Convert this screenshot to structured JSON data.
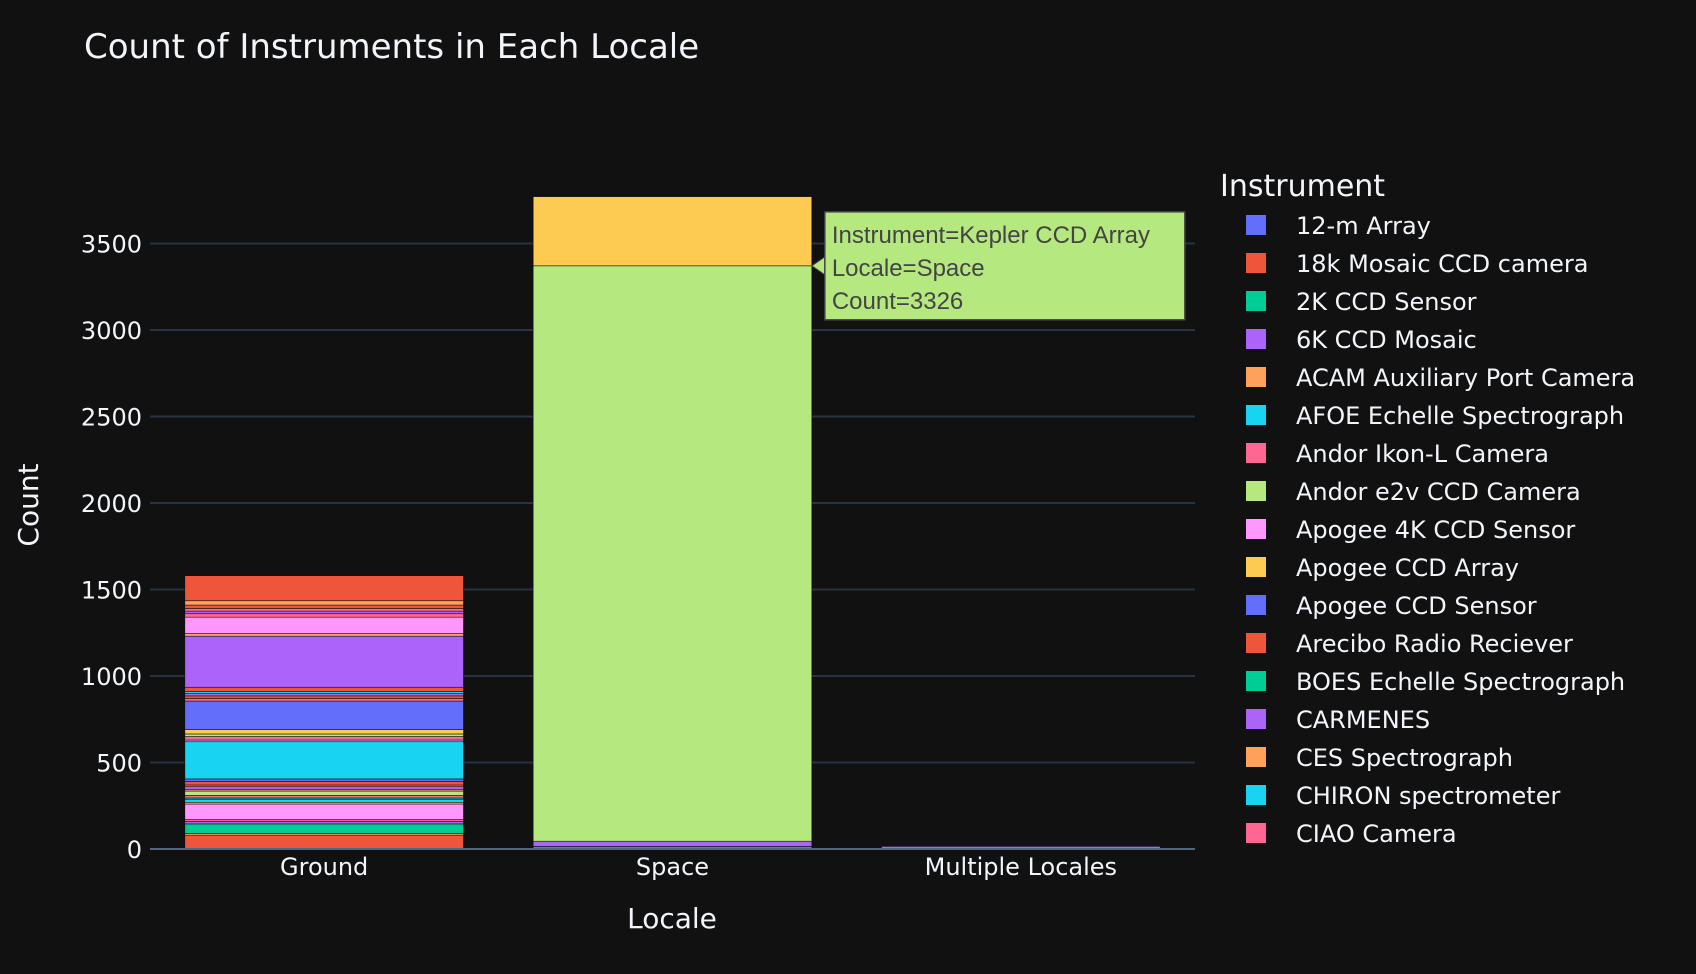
{
  "chart_data": {
    "type": "bar",
    "barmode": "stack",
    "title": "Count of Instruments in Each Locale",
    "xlabel": "Locale",
    "ylabel": "Count",
    "categories": [
      "Ground",
      "Space",
      "Multiple Locales"
    ],
    "y_ticks": [
      0,
      500,
      1000,
      1500,
      2000,
      2500,
      3000,
      3500
    ],
    "ylim": [
      0,
      3800
    ],
    "grid": true,
    "legend": {
      "title": "Instrument",
      "placement": "right",
      "items": [
        {
          "name": "12-m Array",
          "color": "#636efa"
        },
        {
          "name": "18k Mosaic CCD camera",
          "color": "#EF553B"
        },
        {
          "name": "2K CCD Sensor",
          "color": "#00cc96"
        },
        {
          "name": "6K CCD Mosaic",
          "color": "#ab63fa"
        },
        {
          "name": "ACAM Auxiliary Port Camera",
          "color": "#FFA15A"
        },
        {
          "name": "AFOE Echelle Spectrograph",
          "color": "#19d3f3"
        },
        {
          "name": "Andor Ikon-L Camera",
          "color": "#FF6692"
        },
        {
          "name": "Andor e2v CCD Camera",
          "color": "#B6E880"
        },
        {
          "name": "Apogee 4K CCD Sensor",
          "color": "#FF97FF"
        },
        {
          "name": "Apogee CCD Array",
          "color": "#FECB52"
        },
        {
          "name": "Apogee CCD Sensor",
          "color": "#636efa"
        },
        {
          "name": "Arecibo Radio Reciever",
          "color": "#EF553B"
        },
        {
          "name": "BOES Echelle Spectrograph",
          "color": "#00cc96"
        },
        {
          "name": "CARMENES",
          "color": "#ab63fa"
        },
        {
          "name": "CES Spectrograph",
          "color": "#FFA15A"
        },
        {
          "name": "CHIRON spectrometer",
          "color": "#19d3f3"
        },
        {
          "name": "CIAO Camera",
          "color": "#FF6692"
        }
      ]
    },
    "stacks": [
      {
        "category": "Ground",
        "segments": [
          {
            "value": 80,
            "color": "#EF553B"
          },
          {
            "value": 10,
            "color": "#FFA15A"
          },
          {
            "value": 55,
            "color": "#00cc96"
          },
          {
            "value": 15,
            "color": "#ab63fa"
          },
          {
            "value": 10,
            "color": "#FF6692"
          },
          {
            "value": 90,
            "color": "#FF97FF"
          },
          {
            "value": 10,
            "color": "#FECB52"
          },
          {
            "value": 15,
            "color": "#19d3f3"
          },
          {
            "value": 10,
            "color": "#00cc96"
          },
          {
            "value": 15,
            "color": "#FF6692"
          },
          {
            "value": 25,
            "color": "#B6E880"
          },
          {
            "value": 10,
            "color": "#FFA15A"
          },
          {
            "value": 15,
            "color": "#ab63fa"
          },
          {
            "value": 10,
            "color": "#FF6692"
          },
          {
            "value": 20,
            "color": "#EF553B"
          },
          {
            "value": 15,
            "color": "#636efa"
          },
          {
            "value": 215,
            "color": "#19d3f3"
          },
          {
            "value": 10,
            "color": "#FF97FF"
          },
          {
            "value": 20,
            "color": "#FF6692"
          },
          {
            "value": 15,
            "color": "#B6E880"
          },
          {
            "value": 25,
            "color": "#FECB52"
          },
          {
            "value": 165,
            "color": "#636efa"
          },
          {
            "value": 15,
            "color": "#FF6692"
          },
          {
            "value": 15,
            "color": "#EF553B"
          },
          {
            "value": 15,
            "color": "#ab63fa"
          },
          {
            "value": 10,
            "color": "#19d3f3"
          },
          {
            "value": 25,
            "color": "#EF553B"
          },
          {
            "value": 295,
            "color": "#ab63fa"
          },
          {
            "value": 15,
            "color": "#FFA15A"
          },
          {
            "value": 95,
            "color": "#FF97FF"
          },
          {
            "value": 20,
            "color": "#FF6692"
          },
          {
            "value": 15,
            "color": "#ab63fa"
          },
          {
            "value": 15,
            "color": "#FF6692"
          },
          {
            "value": 20,
            "color": "#EF553B"
          },
          {
            "value": 25,
            "color": "#FFA15A"
          },
          {
            "value": 145,
            "color": "#EF553B"
          }
        ]
      },
      {
        "category": "Space",
        "segments": [
          {
            "value": 15,
            "color": "#636efa"
          },
          {
            "value": 30,
            "color": "#ab63fa"
          },
          {
            "value": 3326,
            "color": "#B6E880",
            "name": "Kepler CCD Array"
          },
          {
            "value": 400,
            "color": "#FECB52"
          }
        ]
      },
      {
        "category": "Multiple Locales",
        "segments": [
          {
            "value": 15,
            "color": "#ab63fa"
          }
        ]
      }
    ],
    "hover": {
      "lines": [
        "Instrument=Kepler CCD Array",
        "Locale=Space",
        "Count=3326"
      ],
      "color": "#B6E880"
    }
  }
}
